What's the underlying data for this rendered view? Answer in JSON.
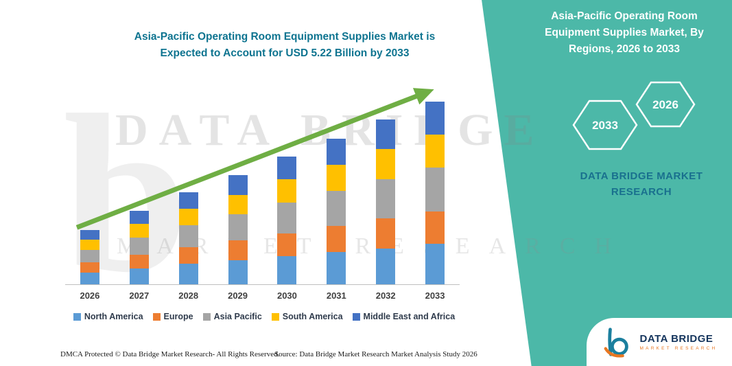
{
  "colors": {
    "teal_panel": "#4cb8a8",
    "title_text": "#0e7490",
    "arrow_green": "#6fae44",
    "panel_brand_text": "#19708e",
    "logo_navy": "#14345c",
    "logo_orange": "#e87722"
  },
  "chart": {
    "title_line1": "Asia-Pacific Operating Room Equipment Supplies Market is",
    "title_line2": "Expected to Account for USD 5.22 Billion by 2033"
  },
  "chart_data": {
    "type": "bar",
    "stacked": true,
    "title": "Asia-Pacific Operating Room Equipment Supplies Market is Expected to Account for USD 5.22 Billion by 2033",
    "unit": "USD Billion",
    "categories": [
      "2026",
      "2027",
      "2028",
      "2029",
      "2030",
      "2031",
      "2032",
      "2033"
    ],
    "series": [
      {
        "name": "North America",
        "color": "#5B9BD5",
        "values": [
          0.34,
          0.46,
          0.58,
          0.69,
          0.8,
          0.92,
          1.03,
          1.15
        ]
      },
      {
        "name": "Europe",
        "color": "#ED7D31",
        "values": [
          0.28,
          0.38,
          0.47,
          0.56,
          0.66,
          0.75,
          0.85,
          0.94
        ]
      },
      {
        "name": "Asia Pacific",
        "color": "#A5A5A5",
        "values": [
          0.37,
          0.5,
          0.63,
          0.75,
          0.88,
          1.0,
          1.13,
          1.25
        ]
      },
      {
        "name": "South America",
        "color": "#FFC000",
        "values": [
          0.28,
          0.38,
          0.47,
          0.56,
          0.66,
          0.75,
          0.85,
          0.94
        ]
      },
      {
        "name": "Middle East and Africa",
        "color": "#4472C4",
        "values": [
          0.28,
          0.38,
          0.47,
          0.56,
          0.66,
          0.75,
          0.85,
          0.94
        ]
      }
    ],
    "totals": [
      1.55,
      2.1,
      2.62,
      3.12,
      3.66,
      4.17,
      4.71,
      5.22
    ],
    "ylim": [
      0,
      5.5
    ],
    "grid": false,
    "legend_position": "bottom",
    "trend_arrow": true
  },
  "side_panel": {
    "title": "Asia-Pacific Operating Room Equipment Supplies Market, By Regions, 2026 to 2033",
    "hexagons": [
      "2033",
      "2026"
    ],
    "brand": "DATA BRIDGE MARKET RESEARCH"
  },
  "watermark": {
    "line1": "DATA BRIDGE",
    "line2": "MARKET RESEARCH",
    "letter": "b"
  },
  "footer": {
    "dmca": "DMCA Protected © Data Bridge Market Research-  All Rights Reserved.",
    "source": "Source: Data Bridge Market Research  Market Analysis Study 2026"
  },
  "logo": {
    "name": "DATA BRIDGE",
    "sub": "MARKET RESEARCH"
  }
}
